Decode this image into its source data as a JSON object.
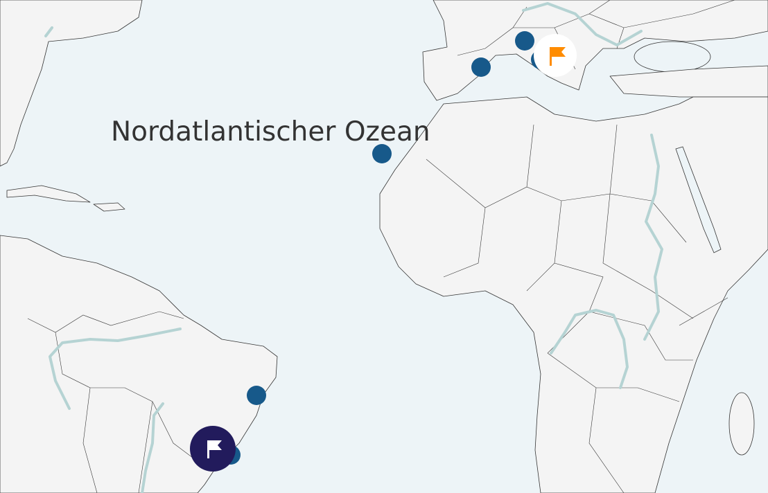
{
  "map": {
    "ocean_label": "Nordatlantischer Ozean",
    "colors": {
      "water": "#edf4f7",
      "land": "#f4f4f4",
      "river": "#b5d3d3",
      "marker": "#17598a",
      "selected_marker": "#221b5c",
      "highlight_flag": "#ff8c00"
    },
    "markers": [
      {
        "id": "marker-1",
        "type": "point",
        "icon": "circle"
      },
      {
        "id": "marker-2",
        "type": "point",
        "icon": "circle"
      },
      {
        "id": "marker-3",
        "type": "point",
        "icon": "circle"
      },
      {
        "id": "marker-4",
        "type": "point",
        "icon": "circle"
      },
      {
        "id": "marker-5",
        "type": "point",
        "icon": "circle"
      },
      {
        "id": "marker-6",
        "type": "point",
        "icon": "circle"
      },
      {
        "id": "flag-orange",
        "type": "flag",
        "icon": "flag-icon"
      },
      {
        "id": "flag-navy",
        "type": "flag",
        "icon": "flag-icon"
      }
    ]
  }
}
